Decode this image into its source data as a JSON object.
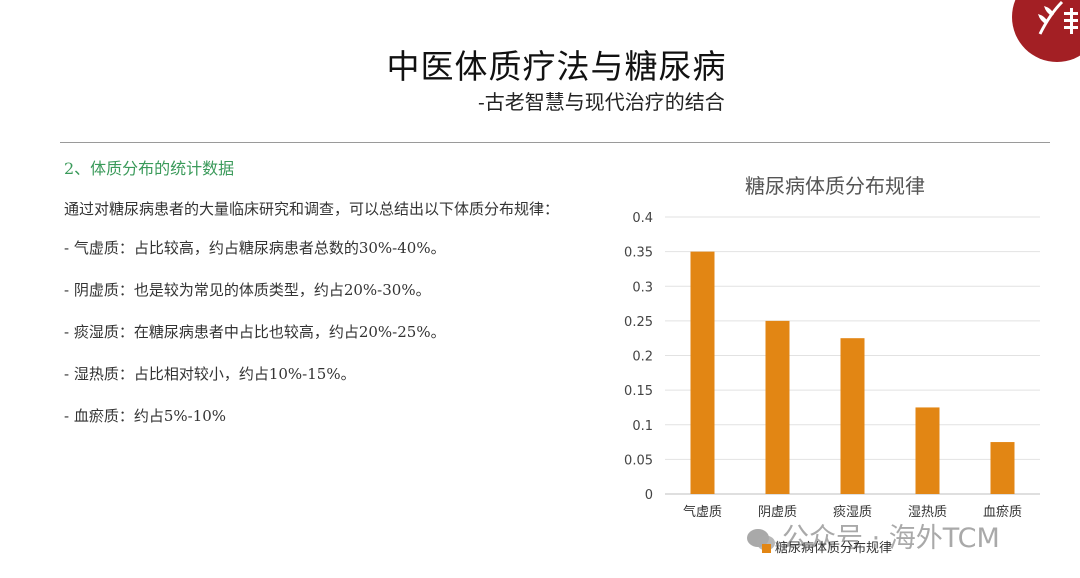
{
  "slide": {
    "title": "中医体质疗法与糖尿病",
    "subtitle": "-古老智慧与现代治疗的结合",
    "section": "2、体质分布的统计数据",
    "intro": "通过对糖尿病患者的大量临床研究和调查，可以总结出以下体质分布规律：",
    "items": [
      "- 气虚质：占比较高，约占糖尿病患者总数的30%-40%。",
      "- 阴虚质：也是较为常见的体质类型，约占20%-30%。",
      "- 痰湿质：在糖尿病患者中占比也较高，约占20%-25%。",
      "- 湿热质：占比相对较小，约占10%-15%。",
      "- 血瘀质：约占5%-10%"
    ]
  },
  "watermark": "公众号 · 海外TCM",
  "colors": {
    "bar": "#e28614",
    "title": "#111111",
    "section": "#3a9a5a",
    "logo": "#a31f24"
  },
  "chart_data": {
    "type": "bar",
    "title": "糖尿病体质分布规律",
    "categories": [
      "气虚质",
      "阴虚质",
      "痰湿质",
      "湿热质",
      "血瘀质"
    ],
    "series": [
      {
        "name": "糖尿病体质分布规律",
        "values": [
          0.35,
          0.25,
          0.225,
          0.125,
          0.075
        ]
      }
    ],
    "ylim": [
      0,
      0.4
    ],
    "yticks": [
      "0",
      "0.05",
      "0.1",
      "0.15",
      "0.2",
      "0.25",
      "0.3",
      "0.35",
      "0.4"
    ],
    "ytick_values": [
      0,
      0.05,
      0.1,
      0.15,
      0.2,
      0.25,
      0.3,
      0.35,
      0.4
    ],
    "grid": true,
    "legend": "bottom"
  }
}
